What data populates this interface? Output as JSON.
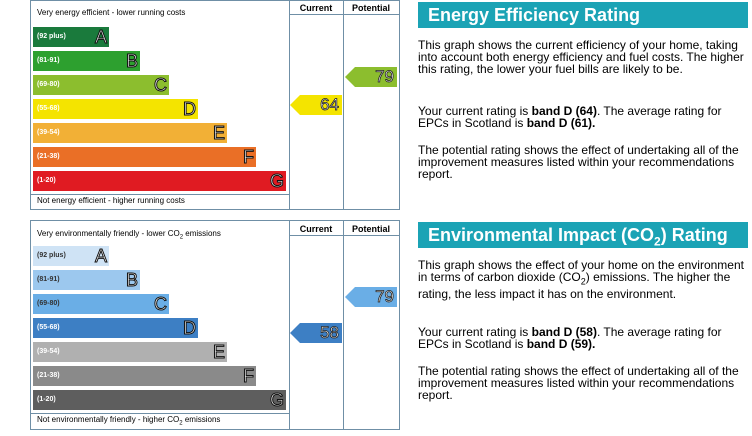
{
  "energy": {
    "top_label": "Very energy efficient - lower running costs",
    "bottom_label": "Not energy efficient - higher running costs",
    "col_current": "Current",
    "col_potential": "Potential",
    "bands": [
      {
        "range": "(92 plus)",
        "letter": "A",
        "color": "#1a7a3c"
      },
      {
        "range": "(81-91)",
        "letter": "B",
        "color": "#2da02f"
      },
      {
        "range": "(69-80)",
        "letter": "C",
        "color": "#8cbe2e"
      },
      {
        "range": "(55-68)",
        "letter": "D",
        "color": "#f4e400"
      },
      {
        "range": "(39-54)",
        "letter": "E",
        "color": "#f2b036"
      },
      {
        "range": "(21-38)",
        "letter": "F",
        "color": "#ea6f26"
      },
      {
        "range": "(1-20)",
        "letter": "G",
        "color": "#e01b22"
      }
    ],
    "current": "64",
    "current_color": "#f4e400",
    "potential": "79",
    "potential_color": "#8cbe2e"
  },
  "environment": {
    "top_label": "Very environmentally friendly - lower CO",
    "top_label_sub": "2",
    "top_label_end": " emissions",
    "bottom_label": "Not environmentally friendly - higher CO",
    "bottom_label_sub": "2",
    "bottom_label_end": " emissions",
    "col_current": "Current",
    "col_potential": "Potential",
    "bands": [
      {
        "range": "(92 plus)",
        "letter": "A",
        "color": "#cfe3f5"
      },
      {
        "range": "(81-91)",
        "letter": "B",
        "color": "#9cc8ee"
      },
      {
        "range": "(69-80)",
        "letter": "C",
        "color": "#6aaee6"
      },
      {
        "range": "(55-68)",
        "letter": "D",
        "color": "#3d7fc4"
      },
      {
        "range": "(39-54)",
        "letter": "E",
        "color": "#b0b0b0"
      },
      {
        "range": "(21-38)",
        "letter": "F",
        "color": "#8a8a8a"
      },
      {
        "range": "(1-20)",
        "letter": "G",
        "color": "#5e5e5e"
      }
    ],
    "current": "58",
    "current_color": "#3d7fc4",
    "potential": "79",
    "potential_color": "#6aaee6"
  },
  "eer_panel": {
    "title": "Energy Efficiency Rating",
    "p1": "This graph shows the current efficiency of your home, taking into account both energy efficiency and fuel costs. The higher this rating, the lower your fuel bills are likely to be.",
    "p2_a": "Your current rating is ",
    "p2_b": "band D (64)",
    "p2_c": ". The average rating for EPCs in Scotland is ",
    "p2_d": "band D (61).",
    "p3": "The potential rating shows the effect of undertaking all of the improvement measures listed within your recommendations report."
  },
  "eir_panel": {
    "title_a": "Environmental Impact (CO",
    "title_sub": "2",
    "title_b": ") Rating",
    "p1_a": "This graph shows the effect of your home on the environment in terms of carbon dioxide (CO",
    "p1_sub": "2",
    "p1_b": ") emissions. The higher the rating, the less impact it has on the environment.",
    "p2_a": "Your current rating is ",
    "p2_b": "band D (58)",
    "p2_c": ". The average rating for EPCs in Scotland is ",
    "p2_d": "band D (59).",
    "p3": "The potential rating shows the effect of undertaking all of the improvement measures listed within your recommendations report."
  },
  "colors": {
    "frame": "#6f8fa6",
    "title_bg": "#1ba3b5"
  }
}
